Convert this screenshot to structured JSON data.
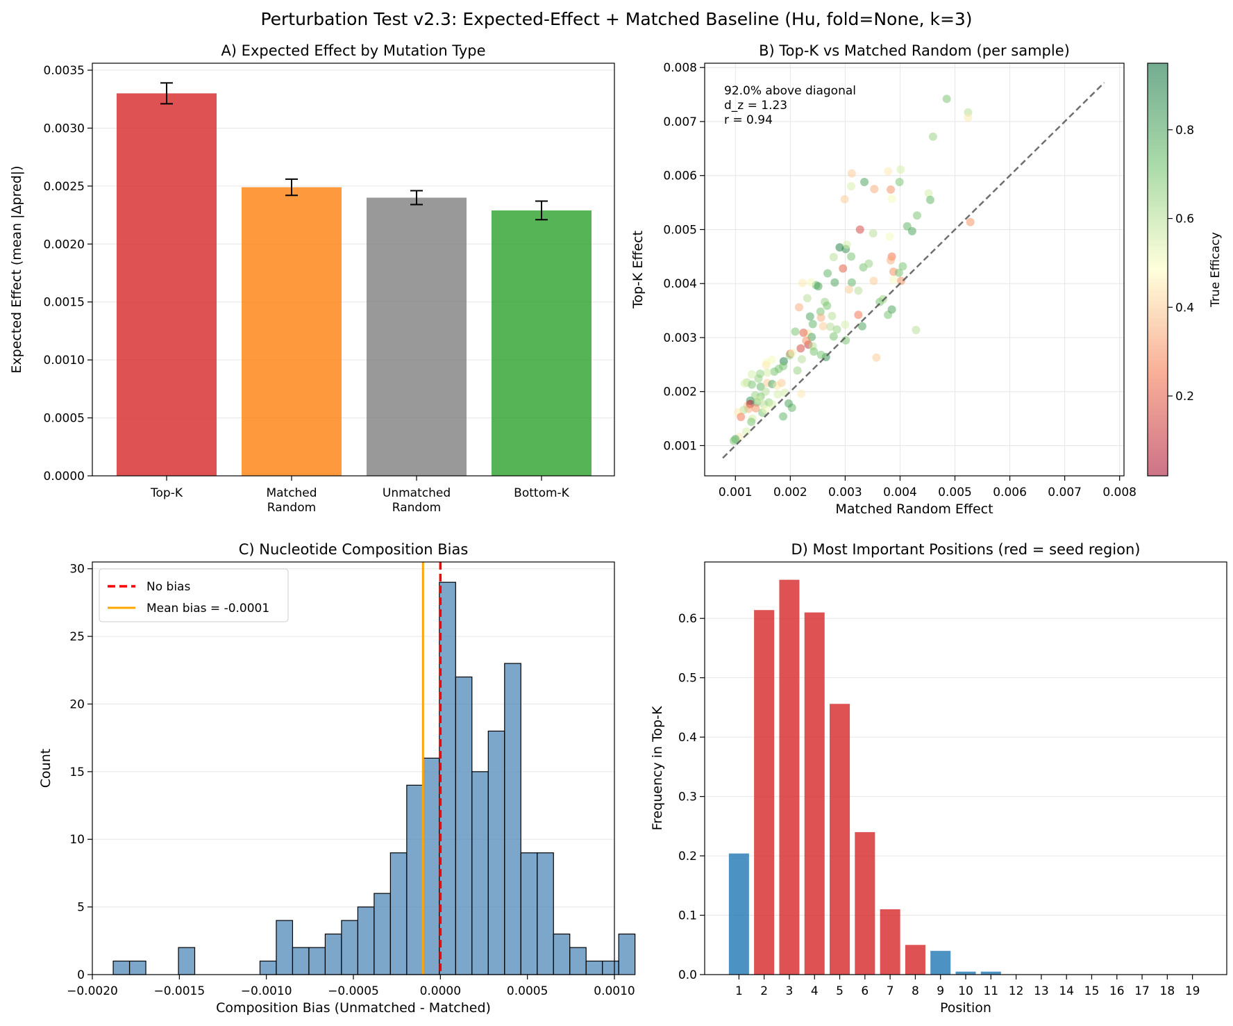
{
  "figure": {
    "suptitle": "Perturbation Test v2.3: Expected-Effect + Matched Baseline (Hu, fold=None, k=3)"
  },
  "colors": {
    "topk": "#d62728",
    "matched": "#ff7f0e",
    "unmatched": "#7f7f7f",
    "bottomk": "#2ca02c",
    "hist": "#4682b4",
    "seed": "#d62728",
    "nonseed": "#1f77b4",
    "nobias": "#ff0000",
    "meanbias": "#ffa500",
    "diagonal": "#555555"
  },
  "chart_data": [
    {
      "id": "A",
      "type": "bar",
      "title": "A) Expected Effect by Mutation Type",
      "xlabel": "",
      "ylabel": "Expected Effect (mean |Δpred|)",
      "categories": [
        "Top-K",
        "Matched\nRandom",
        "Unmatched\nRandom",
        "Bottom-K"
      ],
      "values": [
        0.0033,
        0.00249,
        0.0024,
        0.00229
      ],
      "errors": [
        9e-05,
        7e-05,
        6e-05,
        8e-05
      ],
      "ylim": [
        0,
        0.00356
      ],
      "yticks": [
        "0.0000",
        "0.0005",
        "0.0010",
        "0.0015",
        "0.0020",
        "0.0025",
        "0.0030",
        "0.0035"
      ],
      "grid": "y"
    },
    {
      "id": "B",
      "type": "scatter",
      "title": "B) Top-K vs Matched Random (per sample)",
      "xlabel": "Matched Random Effect",
      "ylabel": "Top-K Effect",
      "xlim": [
        0.00044,
        0.00808
      ],
      "ylim": [
        0.00044,
        0.00808
      ],
      "xticks": [
        "0.001",
        "0.002",
        "0.003",
        "0.004",
        "0.005",
        "0.006",
        "0.007",
        "0.008"
      ],
      "yticks": [
        "0.001",
        "0.002",
        "0.003",
        "0.004",
        "0.005",
        "0.006",
        "0.007",
        "0.008"
      ],
      "annotation": [
        "92.0% above diagonal",
        "d_z = 1.23",
        "r = 0.94"
      ],
      "diagonal": [
        0.00077,
        0.00772
      ],
      "colorbar": {
        "label": "True Efficacy",
        "range": [
          0.02,
          0.95
        ],
        "ticks": [
          "0.2",
          "0.4",
          "0.6",
          "0.8"
        ]
      },
      "points": [
        [
          0.00485,
          0.00742,
          0.7
        ],
        [
          0.00524,
          0.00717,
          0.6
        ],
        [
          0.00524,
          0.00707,
          0.45
        ],
        [
          0.0046,
          0.00672,
          0.65
        ],
        [
          0.00401,
          0.00611,
          0.55
        ],
        [
          0.00378,
          0.00608,
          0.45
        ],
        [
          0.00312,
          0.00604,
          0.4
        ],
        [
          0.00335,
          0.00588,
          0.8
        ],
        [
          0.00353,
          0.00575,
          0.35
        ],
        [
          0.00399,
          0.00588,
          0.7
        ],
        [
          0.00383,
          0.00574,
          0.3
        ],
        [
          0.00385,
          0.00557,
          0.5
        ],
        [
          0.00311,
          0.0058,
          0.55
        ],
        [
          0.00452,
          0.00567,
          0.55
        ],
        [
          0.00455,
          0.00555,
          0.75
        ],
        [
          0.00299,
          0.00556,
          0.4
        ],
        [
          0.00431,
          0.00526,
          0.7
        ],
        [
          0.00528,
          0.00514,
          0.3
        ],
        [
          0.00422,
          0.00497,
          0.8
        ],
        [
          0.00413,
          0.00506,
          0.75
        ],
        [
          0.00351,
          0.00493,
          0.6
        ],
        [
          0.00327,
          0.005,
          0.15
        ],
        [
          0.00381,
          0.00487,
          0.5
        ],
        [
          0.00385,
          0.0045,
          0.25
        ],
        [
          0.00383,
          0.00443,
          0.35
        ],
        [
          0.00405,
          0.00432,
          0.7
        ],
        [
          0.00388,
          0.00422,
          0.3
        ],
        [
          0.00388,
          0.00407,
          0.5
        ],
        [
          0.00398,
          0.0042,
          0.7
        ],
        [
          0.00402,
          0.00405,
          0.3
        ],
        [
          0.0029,
          0.00467,
          0.9
        ],
        [
          0.00301,
          0.00464,
          0.85
        ],
        [
          0.00303,
          0.00472,
          0.55
        ],
        [
          0.00311,
          0.0045,
          0.7
        ],
        [
          0.00279,
          0.00449,
          0.6
        ],
        [
          0.00296,
          0.00428,
          0.2
        ],
        [
          0.00333,
          0.0043,
          0.7
        ],
        [
          0.00343,
          0.00437,
          0.65
        ],
        [
          0.00352,
          0.00405,
          0.4
        ],
        [
          0.00312,
          0.00402,
          0.75
        ],
        [
          0.00281,
          0.00402,
          0.8
        ],
        [
          0.00247,
          0.00397,
          0.75
        ],
        [
          0.00268,
          0.00419,
          0.75
        ],
        [
          0.00222,
          0.00401,
          0.45
        ],
        [
          0.00237,
          0.00402,
          0.5
        ],
        [
          0.00251,
          0.00395,
          0.8
        ],
        [
          0.00307,
          0.00389,
          0.4
        ],
        [
          0.00324,
          0.00387,
          0.6
        ],
        [
          0.00363,
          0.00366,
          0.7
        ],
        [
          0.00369,
          0.00371,
          0.65
        ],
        [
          0.00378,
          0.00342,
          0.7
        ],
        [
          0.00385,
          0.00352,
          0.8
        ],
        [
          0.00324,
          0.00342,
          0.25
        ],
        [
          0.00331,
          0.00321,
          0.8
        ],
        [
          0.003,
          0.00324,
          0.55
        ],
        [
          0.00301,
          0.00295,
          0.7
        ],
        [
          0.00429,
          0.00314,
          0.6
        ],
        [
          0.00357,
          0.00263,
          0.4
        ],
        [
          0.00216,
          0.00356,
          0.35
        ],
        [
          0.00231,
          0.00373,
          0.6
        ],
        [
          0.00263,
          0.00366,
          0.65
        ],
        [
          0.00267,
          0.00359,
          0.7
        ],
        [
          0.00255,
          0.00348,
          0.7
        ],
        [
          0.00256,
          0.00337,
          0.35
        ],
        [
          0.00236,
          0.00339,
          0.8
        ],
        [
          0.00276,
          0.0034,
          0.6
        ],
        [
          0.00241,
          0.00325,
          0.75
        ],
        [
          0.0026,
          0.00321,
          0.4
        ],
        [
          0.00232,
          0.00308,
          0.45
        ],
        [
          0.00224,
          0.00309,
          0.2
        ],
        [
          0.00239,
          0.00301,
          0.8
        ],
        [
          0.00273,
          0.0032,
          0.6
        ],
        [
          0.00285,
          0.00315,
          0.65
        ],
        [
          0.00279,
          0.00302,
          0.7
        ],
        [
          0.00209,
          0.00311,
          0.7
        ],
        [
          0.00233,
          0.00287,
          0.1
        ],
        [
          0.00229,
          0.00294,
          0.3
        ],
        [
          0.00241,
          0.00284,
          0.6
        ],
        [
          0.00219,
          0.0028,
          0.15
        ],
        [
          0.002,
          0.0027,
          0.2
        ],
        [
          0.00199,
          0.00267,
          0.65
        ],
        [
          0.00204,
          0.00272,
          0.5
        ],
        [
          0.00188,
          0.00256,
          0.9
        ],
        [
          0.00187,
          0.00247,
          0.7
        ],
        [
          0.00179,
          0.00242,
          0.7
        ],
        [
          0.00171,
          0.00237,
          0.7
        ],
        [
          0.00158,
          0.00235,
          0.55
        ],
        [
          0.00157,
          0.00254,
          0.5
        ],
        [
          0.00167,
          0.00259,
          0.5
        ],
        [
          0.00156,
          0.00249,
          0.45
        ],
        [
          0.00145,
          0.00233,
          0.65
        ],
        [
          0.0013,
          0.00232,
          0.55
        ],
        [
          0.00142,
          0.00224,
          0.65
        ],
        [
          0.00121,
          0.00217,
          0.6
        ],
        [
          0.0013,
          0.00213,
          0.7
        ],
        [
          0.00117,
          0.00215,
          0.55
        ],
        [
          0.00146,
          0.00209,
          0.75
        ],
        [
          0.00158,
          0.00216,
          0.4
        ],
        [
          0.00167,
          0.00214,
          0.8
        ],
        [
          0.00176,
          0.00211,
          0.45
        ],
        [
          0.00184,
          0.00216,
          0.4
        ],
        [
          0.00177,
          0.00195,
          0.55
        ],
        [
          0.00155,
          0.002,
          0.6
        ],
        [
          0.00146,
          0.00191,
          0.7
        ],
        [
          0.00136,
          0.00193,
          0.65
        ],
        [
          0.00127,
          0.00183,
          0.85
        ],
        [
          0.00122,
          0.00174,
          0.4
        ],
        [
          0.00127,
          0.00177,
          0.05
        ],
        [
          0.00139,
          0.0018,
          0.75
        ],
        [
          0.00143,
          0.00185,
          0.55
        ],
        [
          0.00152,
          0.00176,
          0.6
        ],
        [
          0.00161,
          0.0018,
          0.65
        ],
        [
          0.00167,
          0.00176,
          0.55
        ],
        [
          0.00137,
          0.00169,
          0.3
        ],
        [
          0.00149,
          0.00161,
          0.7
        ],
        [
          0.00155,
          0.00167,
          0.5
        ],
        [
          0.00124,
          0.00168,
          0.35
        ],
        [
          0.00115,
          0.00166,
          0.6
        ],
        [
          0.00105,
          0.00162,
          0.45
        ],
        [
          0.0011,
          0.00153,
          0.25
        ],
        [
          0.00131,
          0.0015,
          0.55
        ],
        [
          0.00129,
          0.00144,
          0.7
        ],
        [
          0.0012,
          0.00126,
          0.55
        ],
        [
          0.00107,
          0.00116,
          0.45
        ],
        [
          0.001,
          0.00112,
          0.8
        ],
        [
          0.00097,
          0.00109,
          0.7
        ],
        [
          0.00187,
          0.00154,
          0.75
        ],
        [
          0.00203,
          0.0017,
          0.75
        ],
        [
          0.0022,
          0.00196,
          0.45
        ],
        [
          0.00197,
          0.00178,
          0.8
        ],
        [
          0.0019,
          0.00198,
          0.55
        ],
        [
          0.00213,
          0.00239,
          0.65
        ],
        [
          0.00221,
          0.0026,
          0.6
        ],
        [
          0.00243,
          0.00274,
          0.7
        ],
        [
          0.00265,
          0.00264,
          0.85
        ],
        [
          0.00256,
          0.00268,
          0.7
        ]
      ]
    },
    {
      "id": "C",
      "type": "histogram",
      "title": "C) Nucleotide Composition Bias",
      "xlabel": "Composition Bias (Unmatched - Matched)",
      "ylabel": "Count",
      "bin_start": -0.00188,
      "bin_width": 9.37e-05,
      "counts": [
        1,
        1,
        0,
        0,
        2,
        0,
        0,
        0,
        0,
        1,
        4,
        2,
        2,
        3,
        4,
        5,
        6,
        9,
        14,
        16,
        29,
        22,
        15,
        18,
        23,
        9,
        9,
        3,
        2,
        1,
        1,
        3
      ],
      "xlim": [
        -0.002,
        0.001
      ],
      "ylim": [
        0,
        30.5
      ],
      "xticks": [
        "−0.0020",
        "−0.0015",
        "−0.0010",
        "−0.0005",
        "0.0000",
        "0.0005",
        "0.0010"
      ],
      "yticks": [
        "0",
        "5",
        "10",
        "15",
        "20",
        "25",
        "30"
      ],
      "no_bias_x": 0.0,
      "mean_bias_x": -0.0001,
      "legend": {
        "no_bias": "No bias",
        "mean_bias": "Mean bias = -0.0001",
        "location": "upper-left"
      }
    },
    {
      "id": "D",
      "type": "bar",
      "title": "D) Most Important Positions (red = seed region)",
      "xlabel": "Position",
      "ylabel": "Frequency in Top-K",
      "categories": [
        "1",
        "2",
        "3",
        "4",
        "5",
        "6",
        "7",
        "8",
        "9",
        "10",
        "11",
        "12",
        "13",
        "14",
        "15",
        "16",
        "17",
        "18",
        "19"
      ],
      "values": [
        0.204,
        0.614,
        0.665,
        0.61,
        0.456,
        0.24,
        0.11,
        0.05,
        0.04,
        0.005,
        0.005,
        0,
        0,
        0,
        0,
        0,
        0,
        0,
        0
      ],
      "seed": [
        false,
        true,
        true,
        true,
        true,
        true,
        true,
        true,
        false,
        false,
        false,
        false,
        false,
        false,
        false,
        false,
        false,
        false,
        false
      ],
      "ylim": [
        0,
        0.695
      ],
      "yticks": [
        "0.0",
        "0.1",
        "0.2",
        "0.3",
        "0.4",
        "0.5",
        "0.6"
      ]
    }
  ]
}
